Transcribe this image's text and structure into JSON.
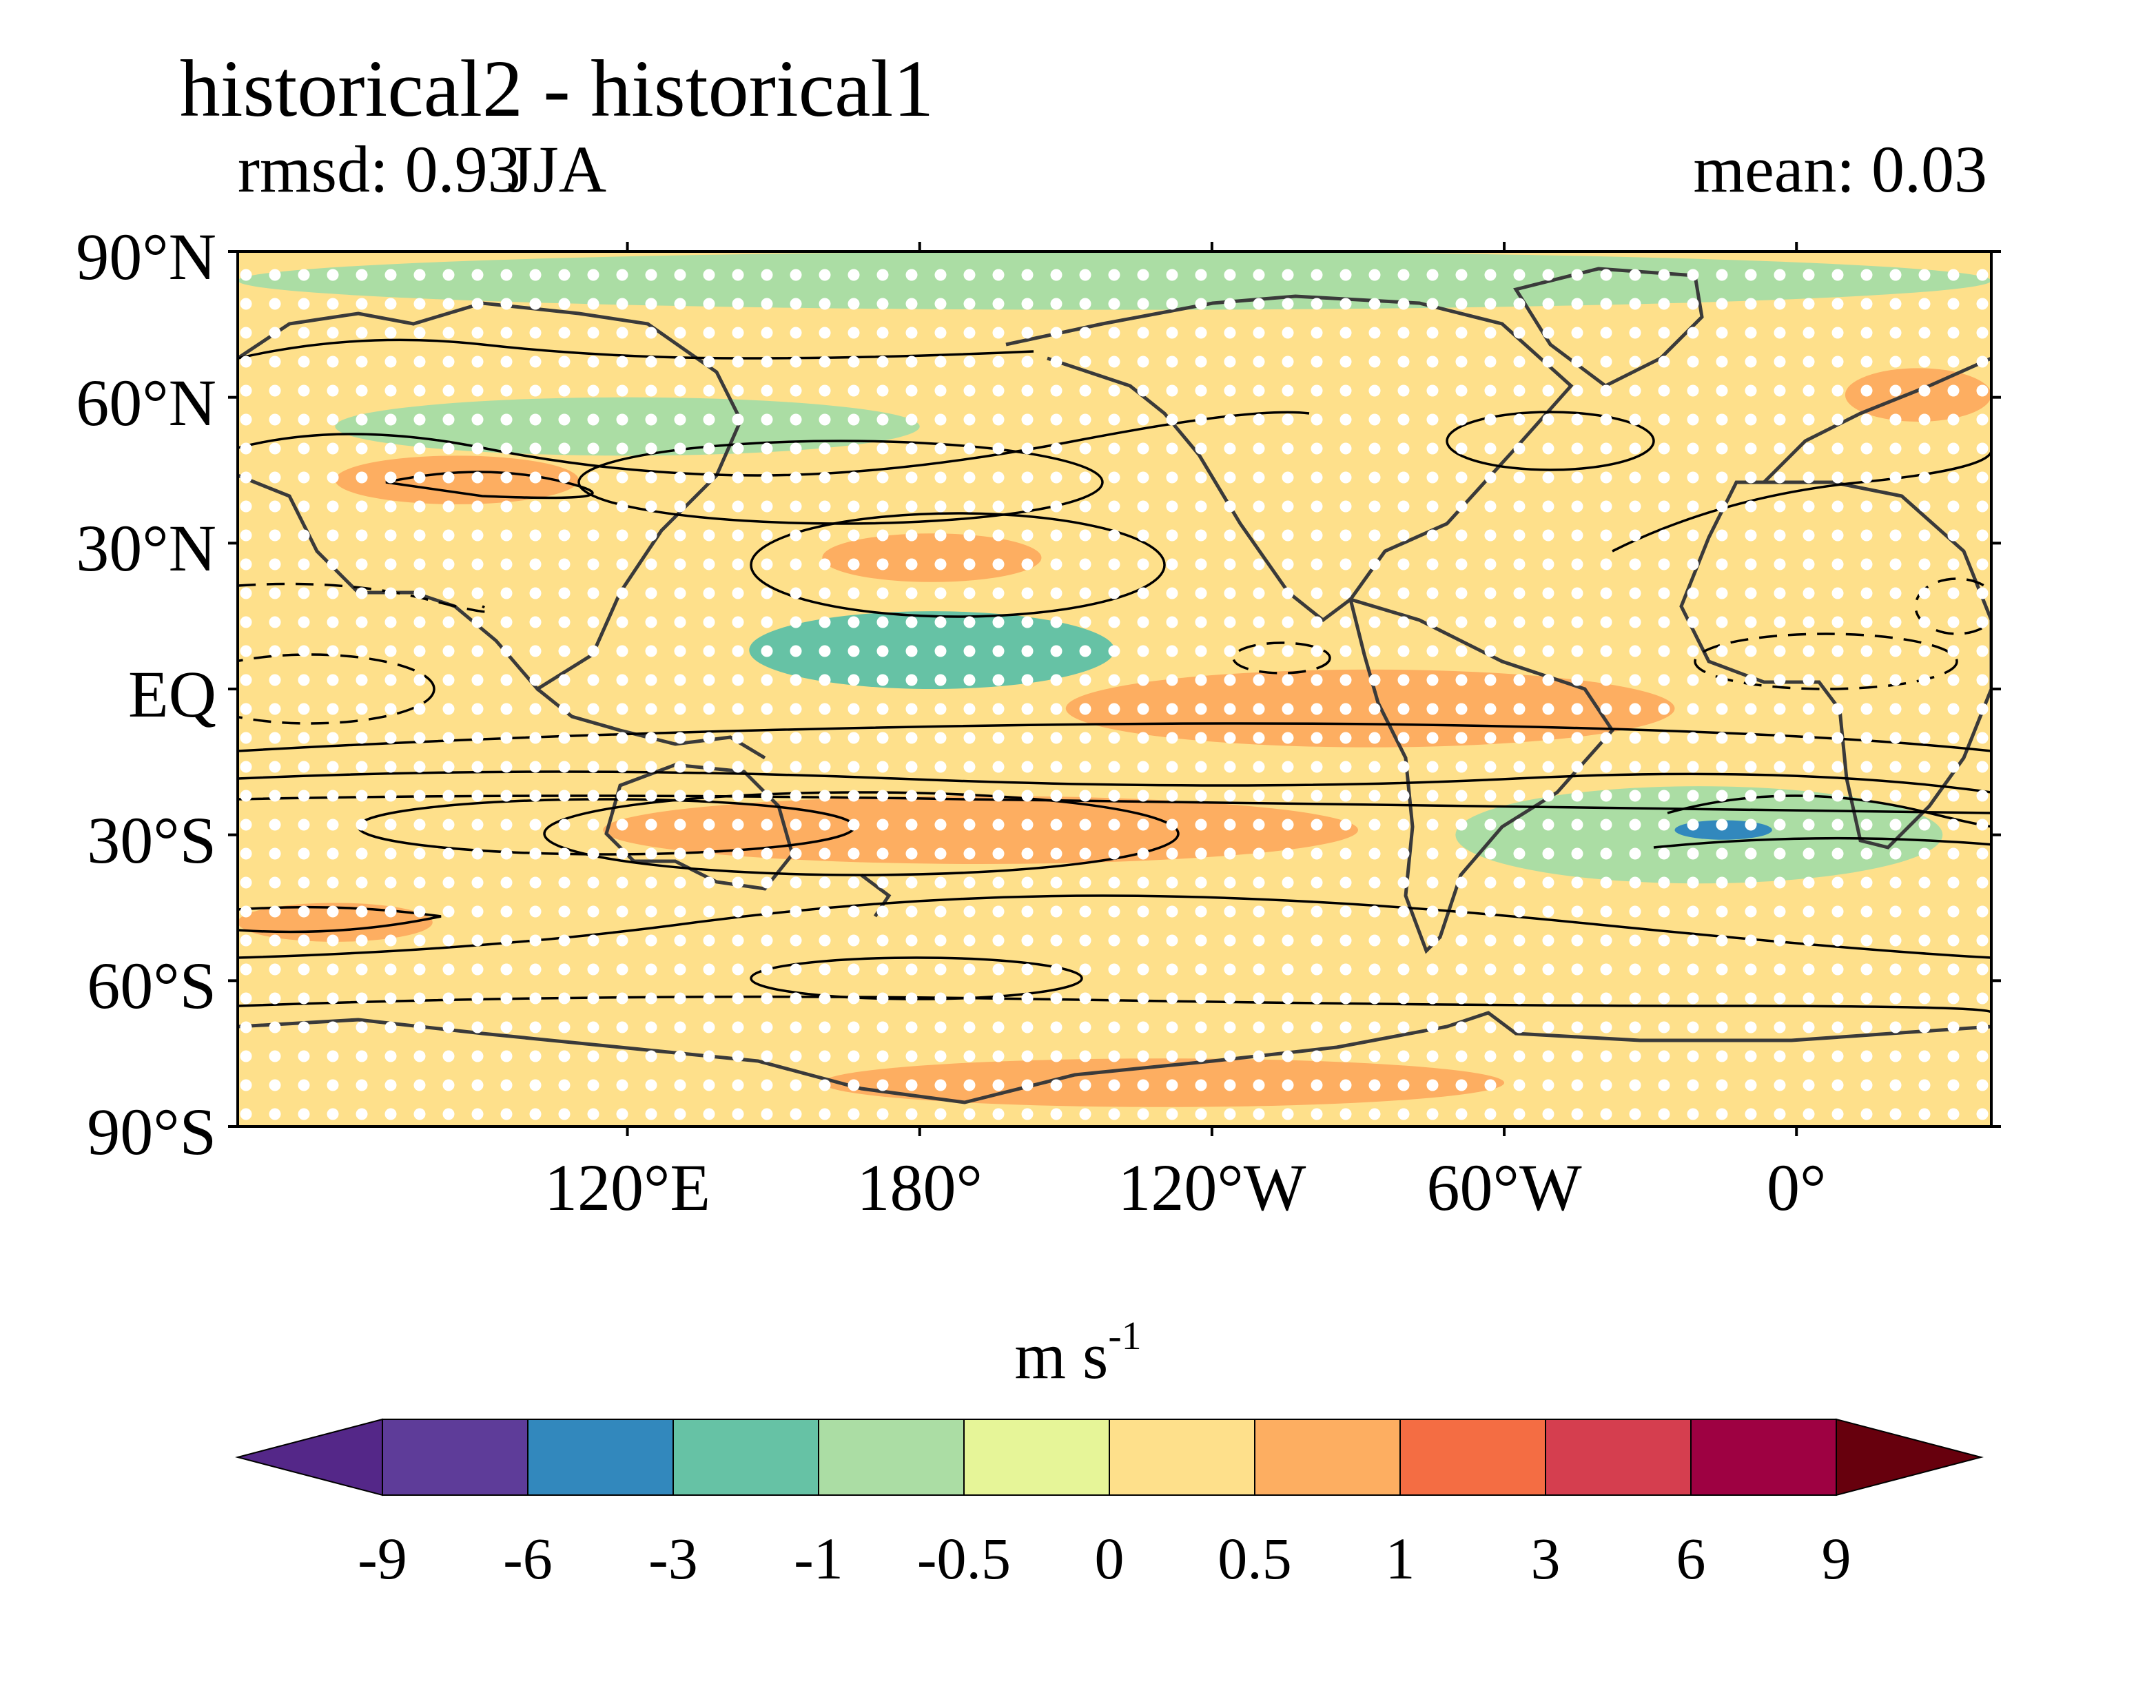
{
  "header": {
    "title": "historical2 - historical1",
    "rmsd": "rmsd: 0.93",
    "season": "JJA",
    "mean": "mean: 0.03"
  },
  "map": {
    "projection": "equirectangular",
    "lon_range": [
      40,
      400
    ],
    "lat_range": [
      -90,
      90
    ],
    "y_ticks": [
      {
        "lat": 90,
        "label": "90°N"
      },
      {
        "lat": 60,
        "label": "60°N"
      },
      {
        "lat": 30,
        "label": "30°N"
      },
      {
        "lat": 0,
        "label": "EQ"
      },
      {
        "lat": -30,
        "label": "30°S"
      },
      {
        "lat": -60,
        "label": "60°S"
      },
      {
        "lat": -90,
        "label": "90°S"
      }
    ],
    "x_ticks": [
      {
        "lon": 120,
        "label": "120°E"
      },
      {
        "lon": 180,
        "label": "180°"
      },
      {
        "lon": 240,
        "label": "120°W"
      },
      {
        "lon": 300,
        "label": "60°W"
      },
      {
        "lon": 360,
        "label": "0°"
      }
    ],
    "fill_regions": [
      {
        "level": "neg1",
        "lon": [
          40,
          400
        ],
        "lat": [
          78,
          90
        ]
      },
      {
        "level": "neg1",
        "lon": [
          60,
          180
        ],
        "lat": [
          48,
          60
        ]
      },
      {
        "level": "neg3",
        "lon": [
          145,
          220
        ],
        "lat": [
          0,
          16
        ]
      },
      {
        "level": "neg1",
        "lon": [
          290,
          390
        ],
        "lat": [
          -40,
          -20
        ]
      },
      {
        "level": "neg6",
        "lon": [
          335,
          355
        ],
        "lat": [
          -31,
          -27
        ]
      },
      {
        "level": "pos1",
        "lon": [
          60,
          110
        ],
        "lat": [
          38,
          48
        ]
      },
      {
        "level": "pos1",
        "lon": [
          160,
          205
        ],
        "lat": [
          22,
          32
        ]
      },
      {
        "level": "pos1",
        "lon": [
          210,
          335
        ],
        "lat": [
          -12,
          4
        ]
      },
      {
        "level": "pos1",
        "lon": [
          115,
          270
        ],
        "lat": [
          -36,
          -22
        ]
      },
      {
        "level": "pos1",
        "lon": [
          40,
          80
        ],
        "lat": [
          -52,
          -44
        ]
      },
      {
        "level": "pos1",
        "lon": [
          160,
          300
        ],
        "lat": [
          -86,
          -76
        ]
      },
      {
        "level": "pos1",
        "lon": [
          370,
          400
        ],
        "lat": [
          55,
          66
        ]
      }
    ],
    "colorbar": {
      "units_base": "m s",
      "units_exp": "-1",
      "levels": [
        "-9",
        "-6",
        "-3",
        "-1",
        "-0.5",
        "0",
        "0.5",
        "1",
        "3",
        "6",
        "9"
      ],
      "colors": [
        "#5e3c99",
        "#3288bd",
        "#66c2a5",
        "#abdda4",
        "#e6f598",
        "#fee08b",
        "#fdae61",
        "#f46d43",
        "#d53e4f",
        "#9e0142"
      ],
      "extend_min_color": "#542788",
      "extend_max_color": "#67000d",
      "palette": {
        "neg6": "#3288bd",
        "neg3": "#66c2a5",
        "neg1": "#abdda4",
        "neg05": "#e6f598",
        "pos05": "#fee08b",
        "pos1": "#fdae61",
        "pos3": "#f46d43"
      }
    },
    "stipple_color": "#ffffff",
    "coastline_color": "#3a3a3a",
    "contour_color": "#000000"
  }
}
